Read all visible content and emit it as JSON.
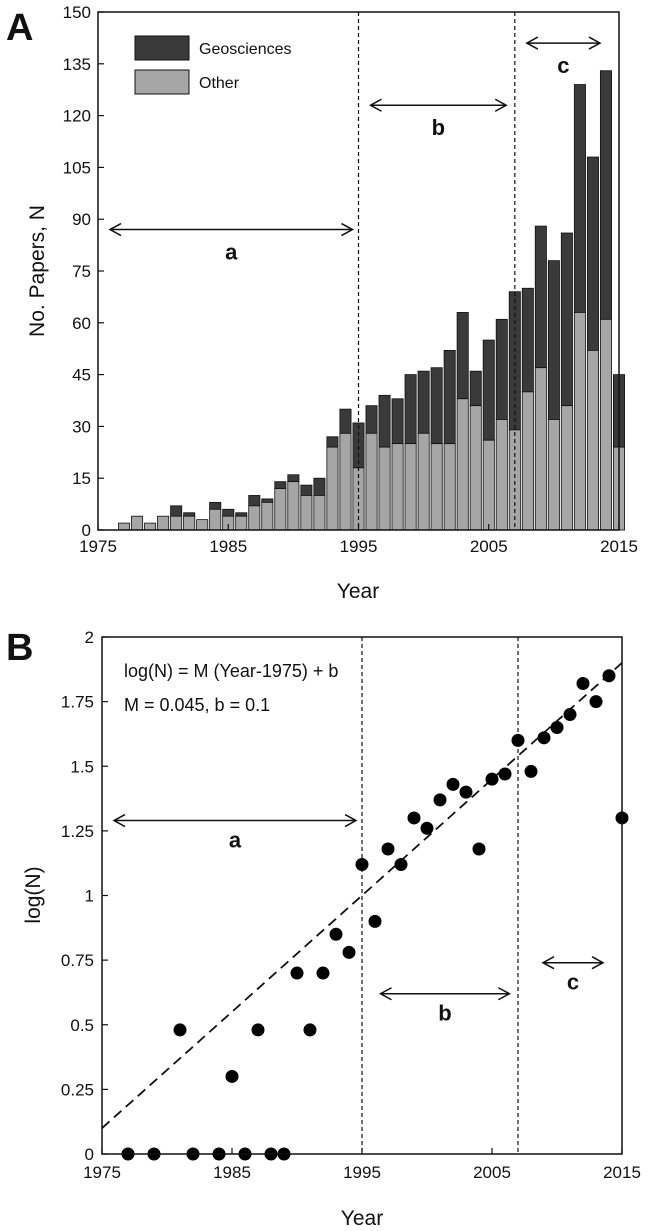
{
  "chart_data": [
    {
      "panel_label": "A",
      "type": "bar",
      "stacked": true,
      "xlabel": "Year",
      "ylabel": "No. Papers, N",
      "xlim": [
        1975,
        2015
      ],
      "ylim": [
        0,
        150
      ],
      "xticks": [
        "1975",
        "1985",
        "1995",
        "2005",
        "2015"
      ],
      "yticks": [
        "0",
        "15",
        "30",
        "45",
        "60",
        "75",
        "90",
        "105",
        "120",
        "135",
        "150"
      ],
      "legend": {
        "position": "top-left",
        "entries": [
          "Geosciences",
          "Other"
        ]
      },
      "colors": {
        "Geosciences": "#3a3a3a",
        "Other": "#a6a6a6"
      },
      "x": [
        1977,
        1978,
        1979,
        1980,
        1981,
        1982,
        1983,
        1984,
        1985,
        1986,
        1987,
        1988,
        1989,
        1990,
        1991,
        1992,
        1993,
        1994,
        1995,
        1996,
        1997,
        1998,
        1999,
        2000,
        2001,
        2002,
        2003,
        2004,
        2005,
        2006,
        2007,
        2008,
        2009,
        2010,
        2011,
        2012,
        2013,
        2014,
        2015
      ],
      "series": [
        {
          "name": "Other",
          "values": [
            2,
            4,
            2,
            4,
            4,
            4,
            3,
            6,
            4,
            4,
            7,
            8,
            12,
            14,
            10,
            10,
            24,
            28,
            18,
            28,
            24,
            25,
            25,
            28,
            25,
            25,
            38,
            36,
            26,
            32,
            29,
            40,
            47,
            32,
            36,
            63,
            52,
            61,
            24
          ]
        },
        {
          "name": "Geosciences",
          "values": [
            0,
            0,
            0,
            0,
            3,
            1,
            0,
            2,
            2,
            1,
            3,
            1,
            2,
            2,
            3,
            5,
            3,
            7,
            13,
            8,
            15,
            13,
            20,
            18,
            22,
            27,
            25,
            10,
            29,
            29,
            40,
            30,
            41,
            46,
            50,
            66,
            56,
            72,
            21
          ]
        }
      ],
      "totals": [
        2,
        4,
        2,
        4,
        7,
        5,
        3,
        8,
        6,
        5,
        10,
        9,
        14,
        16,
        13,
        15,
        27,
        35,
        31,
        36,
        39,
        38,
        45,
        46,
        47,
        52,
        63,
        46,
        55,
        61,
        69,
        70,
        88,
        78,
        86,
        129,
        108,
        133,
        45
      ],
      "dividers": [
        1995,
        2007
      ],
      "ranges": [
        {
          "label": "a",
          "from": 1975,
          "to": 1995,
          "y": 87
        },
        {
          "label": "b",
          "from": 1995,
          "to": 2006.8,
          "y": 123
        },
        {
          "label": "c",
          "from": 2007,
          "to": 2014,
          "y": 141
        }
      ],
      "grid": false
    },
    {
      "panel_label": "B",
      "type": "scatter",
      "xlabel": "Year",
      "ylabel": "log(N)",
      "xlim": [
        1975,
        2015
      ],
      "ylim": [
        0,
        2
      ],
      "xticks": [
        "1975",
        "1985",
        "1995",
        "2005",
        "2015"
      ],
      "yticks": [
        "0",
        "0.25",
        "0.5",
        "0.75",
        "1",
        "1.25",
        "1.5",
        "1.75",
        "2"
      ],
      "equation_line1": "log(N) = M (Year-1975) + b",
      "equation_line2": "M = 0.045, b = 0.1",
      "fit": {
        "M": 0.045,
        "b": 0.1,
        "x0": 1975
      },
      "x": [
        1977,
        1979,
        1981,
        1982,
        1984,
        1985,
        1986,
        1987,
        1988,
        1989,
        1990,
        1991,
        1992,
        1993,
        1994,
        1995,
        1996,
        1997,
        1998,
        1999,
        2000,
        2001,
        2002,
        2003,
        2004,
        2005,
        2006,
        2007,
        2008,
        2009,
        2010,
        2011,
        2012,
        2013,
        2014,
        2015
      ],
      "y": [
        0,
        0,
        0.48,
        0,
        0,
        0.3,
        0,
        0.48,
        0,
        0,
        0.7,
        0.48,
        0.7,
        0.85,
        0.78,
        1.12,
        0.9,
        1.18,
        1.12,
        1.3,
        1.26,
        1.37,
        1.43,
        1.4,
        1.18,
        1.45,
        1.47,
        1.6,
        1.48,
        1.61,
        1.65,
        1.7,
        1.82,
        1.75,
        1.85,
        1.3
      ],
      "dividers": [
        1995,
        2007
      ],
      "ranges": [
        {
          "label": "a",
          "from": 1975,
          "to": 1995,
          "y": 1.29
        },
        {
          "label": "b",
          "from": 1995.5,
          "to": 2006.8,
          "y": 0.62
        },
        {
          "label": "c",
          "from": 2008,
          "to": 2014,
          "y": 0.74
        }
      ],
      "grid": false
    }
  ]
}
